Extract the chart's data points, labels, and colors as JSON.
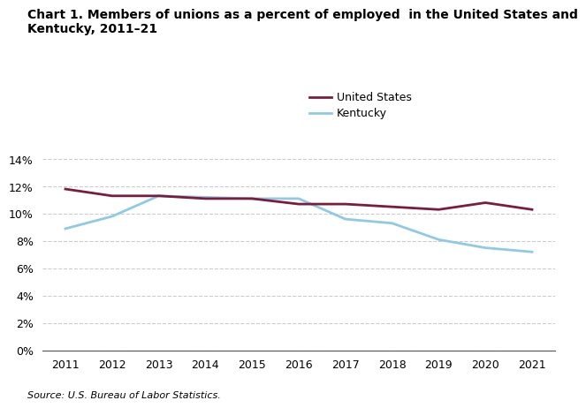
{
  "years": [
    2011,
    2012,
    2013,
    2014,
    2015,
    2016,
    2017,
    2018,
    2019,
    2020,
    2021
  ],
  "us_values": [
    11.8,
    11.3,
    11.3,
    11.1,
    11.1,
    10.7,
    10.7,
    10.5,
    10.3,
    10.8,
    10.3
  ],
  "ky_values": [
    8.9,
    9.8,
    11.3,
    11.2,
    11.1,
    11.1,
    9.6,
    9.3,
    8.1,
    7.5,
    7.2
  ],
  "us_color": "#7B1C3E",
  "ky_color": "#8ECAE6",
  "us_label": "United States",
  "ky_label": "Kentucky",
  "title_line1": "Chart 1. Members of unions as a percent of employed  in the United States and",
  "title_line2": "Kentucky, 2011–21",
  "ylim": [
    0,
    14
  ],
  "yticks": [
    0,
    2,
    4,
    6,
    8,
    10,
    12,
    14
  ],
  "source_text": "Source: U.S. Bureau of Labor Statistics.",
  "line_width": 2.0,
  "background_color": "#ffffff",
  "grid_color": "#cccccc",
  "tick_fontsize": 9,
  "legend_fontsize": 9,
  "title_fontsize": 10
}
